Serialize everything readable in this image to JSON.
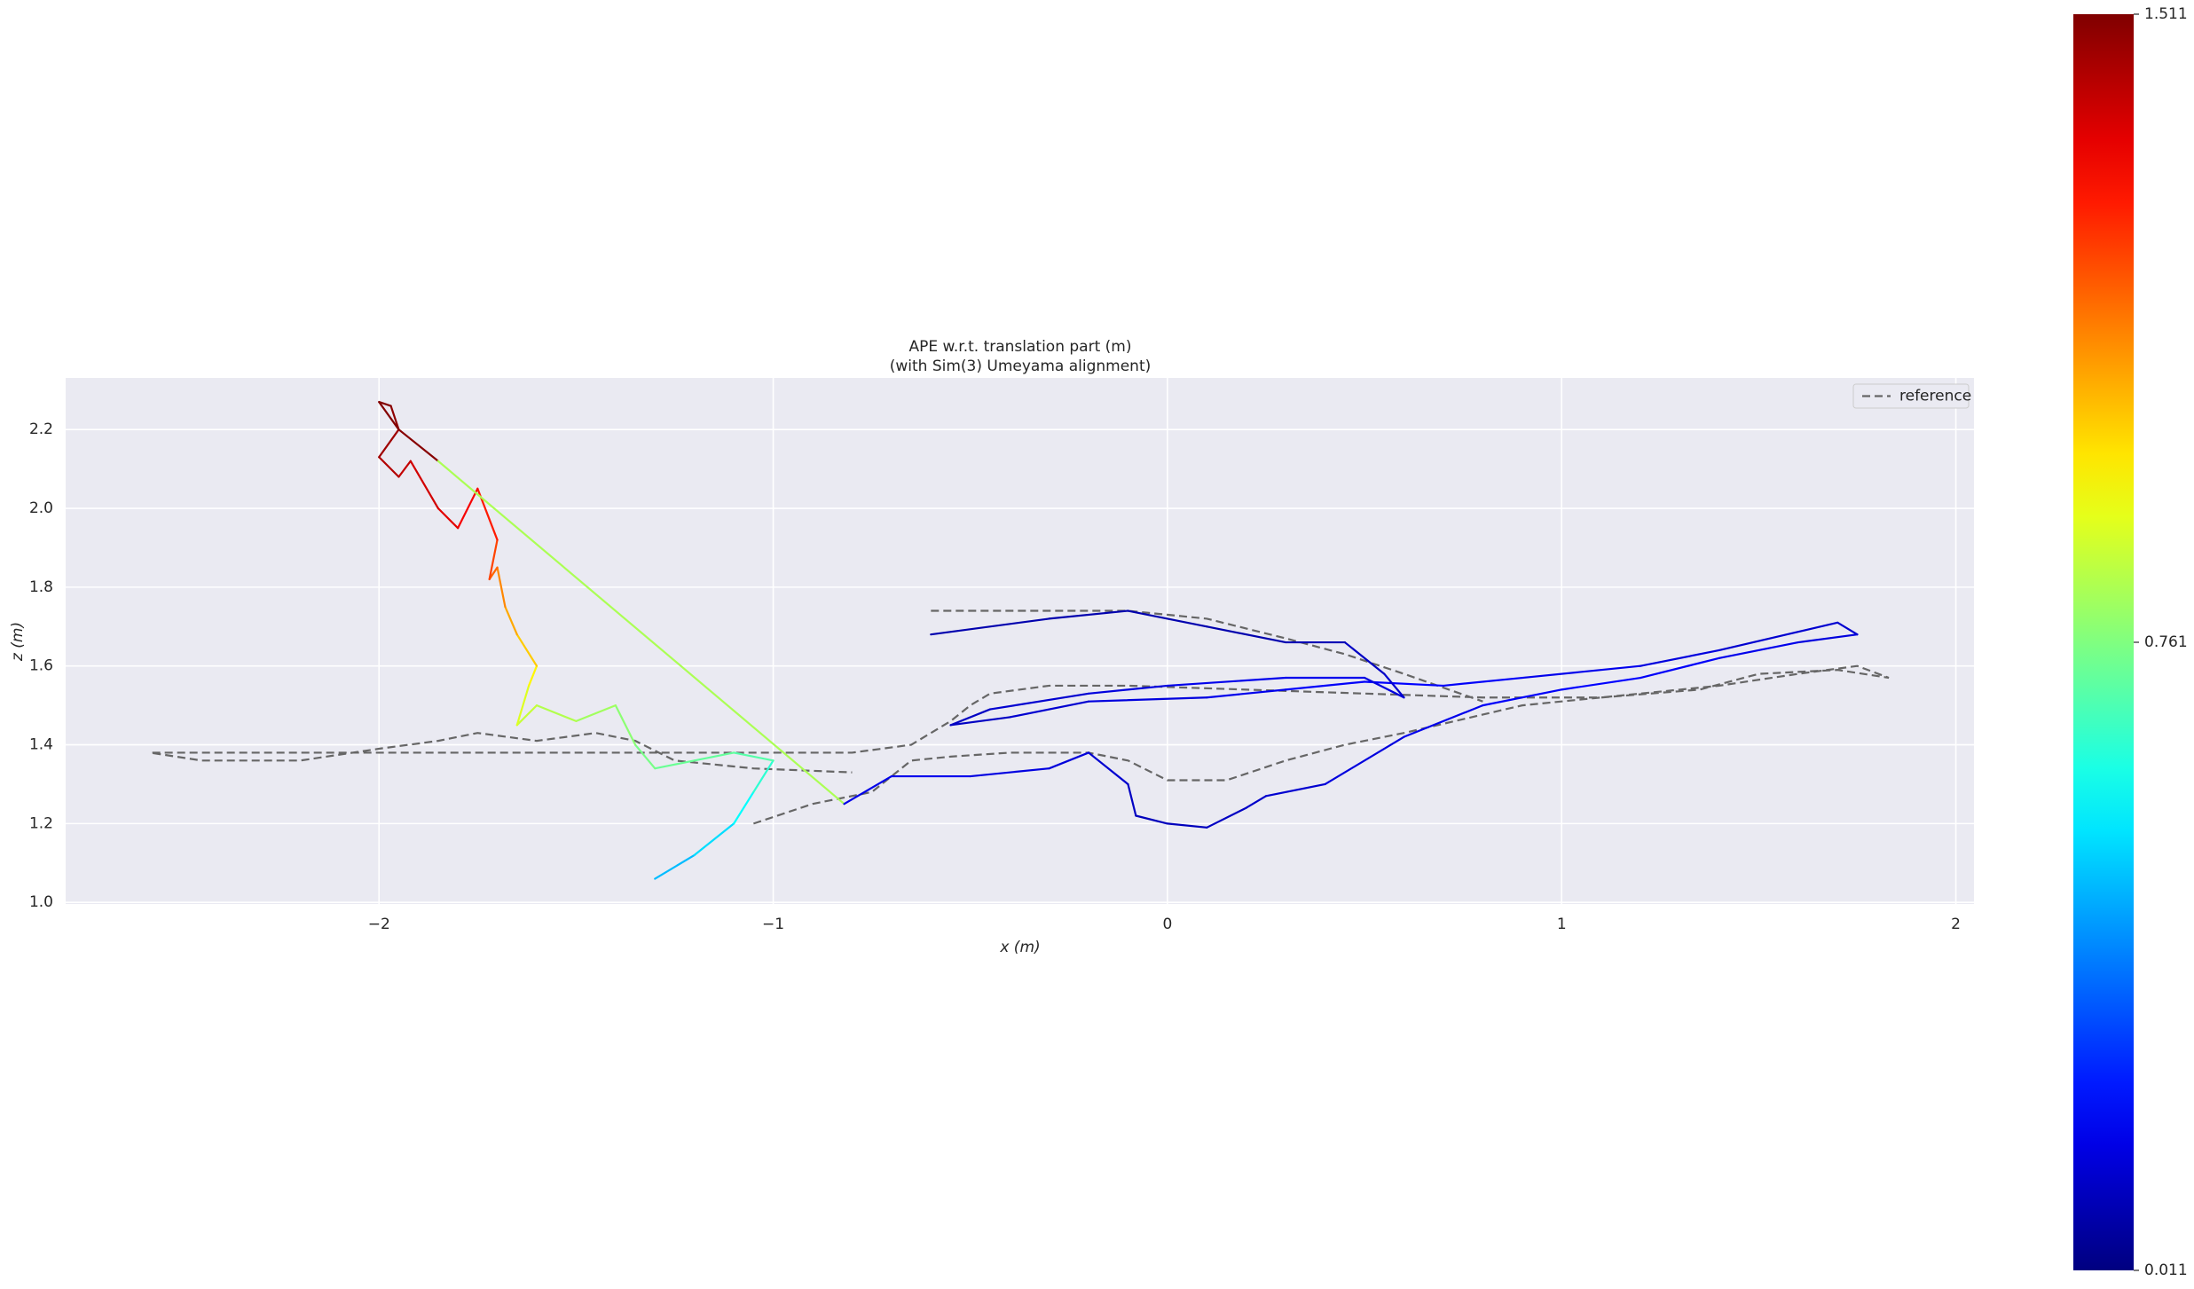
{
  "chart_data": {
    "type": "line",
    "title": "APE w.r.t. translation part (m)",
    "subtitle": "(with Sim(3) Umeyama alignment)",
    "x_label": "x (m)",
    "y_label": "z (m)",
    "xlim": [
      -2.795,
      2.046
    ],
    "ylim": [
      0.996,
      2.331
    ],
    "xticks": [
      {
        "value": -2,
        "label": "−2"
      },
      {
        "value": -1,
        "label": "−1"
      },
      0,
      1,
      2
    ],
    "yticks": [
      {
        "value": 1.0,
        "label": "1.0"
      },
      1.2,
      1.4,
      1.6,
      1.8,
      {
        "value": 2.0,
        "label": "2.0"
      },
      2.2
    ],
    "grid": true,
    "background": "#eaeaf2",
    "legend": "upper right",
    "colormap": "jet",
    "clim": [
      0.011,
      1.511
    ],
    "colorbar_ticks": [
      0.011,
      0.761,
      1.511
    ],
    "series": [
      {
        "name": "reference",
        "color": "#666666",
        "dashed": true,
        "x": [
          -1.05,
          -0.9,
          -0.75,
          -0.65,
          -0.55,
          -0.4,
          -0.2,
          -0.1,
          0.0,
          0.15,
          0.3,
          0.45,
          0.6,
          0.9,
          1.2,
          1.4,
          1.6,
          1.75,
          1.83,
          1.7,
          1.5,
          1.35,
          1.1,
          0.8,
          0.5,
          0.2,
          -0.1,
          -0.3,
          -0.45,
          -0.5,
          -0.55,
          -0.65,
          -0.8,
          -1.2,
          -1.6,
          -2.0,
          -2.4,
          -2.58,
          -2.45,
          -2.2,
          -2.0,
          -1.85,
          -1.75,
          -1.6,
          -1.45,
          -1.35,
          -1.25,
          -1.05,
          -0.8,
          null,
          -0.6,
          -0.4,
          -0.1,
          0.1,
          0.3,
          0.45,
          0.6,
          0.8
        ],
        "values": [
          1.2,
          1.25,
          1.28,
          1.36,
          1.37,
          1.38,
          1.38,
          1.36,
          1.31,
          1.31,
          1.36,
          1.4,
          1.43,
          1.5,
          1.53,
          1.55,
          1.58,
          1.6,
          1.57,
          1.59,
          1.58,
          1.54,
          1.52,
          1.52,
          1.53,
          1.54,
          1.55,
          1.55,
          1.53,
          1.5,
          1.46,
          1.4,
          1.38,
          1.38,
          1.38,
          1.38,
          1.38,
          1.38,
          1.36,
          1.36,
          1.39,
          1.41,
          1.43,
          1.41,
          1.43,
          1.41,
          1.36,
          1.34,
          1.33,
          null,
          1.74,
          1.74,
          1.74,
          1.72,
          1.67,
          1.63,
          1.58,
          1.51
        ]
      },
      {
        "x": [
          -1.3,
          -1.2,
          -1.1,
          -1.05,
          -1.0,
          -1.1,
          -1.2,
          -1.3,
          -1.35,
          -1.4,
          -1.5,
          -1.6,
          -1.65,
          -1.62,
          -1.6,
          -1.65,
          -1.68,
          -1.7,
          -1.72,
          -1.7,
          -1.75,
          -1.8,
          -1.85,
          -1.92,
          -1.95,
          -2.0,
          -1.95,
          -1.97,
          -2.0,
          -1.95,
          -1.85,
          -0.82,
          -0.7,
          -0.5,
          -0.3,
          -0.2,
          -0.1,
          -0.08,
          0.0,
          0.1,
          0.2,
          0.25,
          0.4,
          0.6,
          0.8,
          1.0,
          1.2,
          1.4,
          1.6,
          1.75,
          1.7,
          1.4,
          1.2,
          0.9,
          0.7,
          0.5,
          0.3,
          0.1,
          -0.2,
          -0.4,
          -0.55,
          -0.45,
          -0.2,
          0.0,
          0.3,
          0.5,
          0.6,
          0.55,
          0.45,
          0.3,
          0.1,
          -0.1,
          -0.3,
          -0.6
        ],
        "values": [
          1.06,
          1.12,
          1.2,
          1.28,
          1.36,
          1.38,
          1.36,
          1.34,
          1.4,
          1.5,
          1.46,
          1.5,
          1.45,
          1.55,
          1.6,
          1.68,
          1.75,
          1.85,
          1.82,
          1.92,
          2.05,
          1.95,
          2.0,
          2.12,
          2.08,
          2.13,
          2.2,
          2.26,
          2.27,
          2.2,
          2.12,
          1.25,
          1.32,
          1.32,
          1.34,
          1.38,
          1.3,
          1.22,
          1.2,
          1.19,
          1.24,
          1.27,
          1.3,
          1.42,
          1.5,
          1.54,
          1.57,
          1.62,
          1.66,
          1.68,
          1.71,
          1.64,
          1.6,
          1.57,
          1.55,
          1.56,
          1.54,
          1.52,
          1.51,
          1.47,
          1.45,
          1.49,
          1.53,
          1.55,
          1.57,
          1.57,
          1.52,
          1.58,
          1.66,
          1.66,
          1.7,
          1.74,
          1.72,
          1.68
        ],
        "errors": [
          0.45,
          0.5,
          0.55,
          0.6,
          0.68,
          0.72,
          0.72,
          0.74,
          0.76,
          0.8,
          0.82,
          0.85,
          0.88,
          0.92,
          1.0,
          1.05,
          1.1,
          1.15,
          1.2,
          1.25,
          1.32,
          1.35,
          1.38,
          1.4,
          1.42,
          1.45,
          1.48,
          1.5,
          1.511,
          1.5,
          1.5,
          0.15,
          0.18,
          0.16,
          0.15,
          0.14,
          0.12,
          0.1,
          0.1,
          0.1,
          0.12,
          0.12,
          0.14,
          0.16,
          0.18,
          0.2,
          0.2,
          0.18,
          0.16,
          0.14,
          0.12,
          0.14,
          0.16,
          0.18,
          0.2,
          0.2,
          0.18,
          0.16,
          0.14,
          0.12,
          0.1,
          0.12,
          0.14,
          0.16,
          0.18,
          0.16,
          0.14,
          0.12,
          0.1,
          0.08,
          0.08,
          0.08,
          0.08,
          0.08
        ]
      }
    ]
  }
}
